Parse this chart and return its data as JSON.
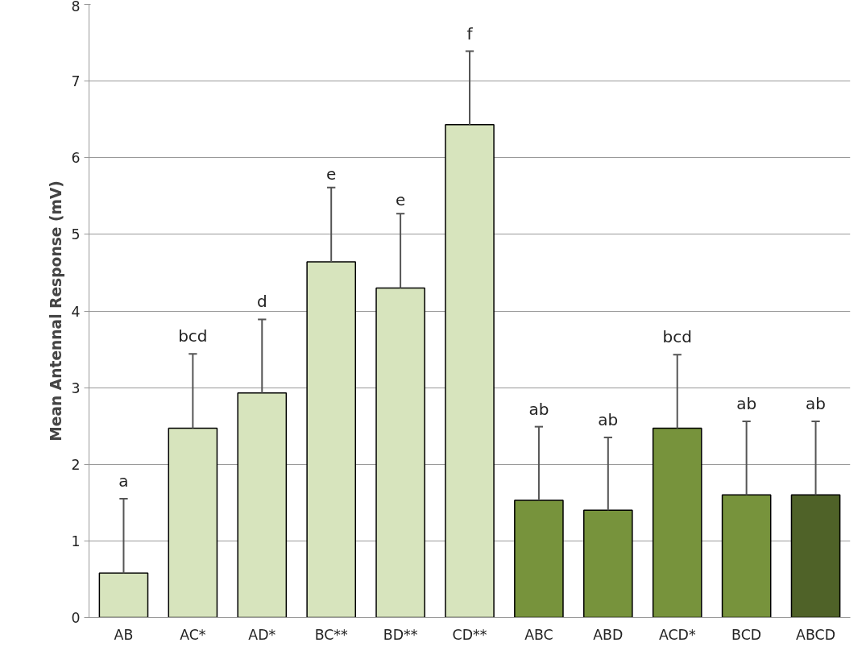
{
  "chart_data": {
    "type": "bar",
    "ylabel": "Mean Antennal Response (mV)",
    "categories": [
      "AB",
      "AC*",
      "AD*",
      "BC**",
      "BD**",
      "CD**",
      "ABC",
      "ABD",
      "ACD*",
      "BCD",
      "ABCD"
    ],
    "values": [
      0.58,
      2.47,
      2.93,
      4.64,
      4.3,
      6.43,
      1.53,
      1.4,
      2.47,
      1.6,
      1.6
    ],
    "errors": [
      [
        0.58,
        1.55
      ],
      [
        2.47,
        3.44
      ],
      [
        2.93,
        3.89
      ],
      [
        4.64,
        5.61
      ],
      [
        4.3,
        5.27
      ],
      [
        6.43,
        7.39
      ],
      [
        1.53,
        2.49
      ],
      [
        1.4,
        2.35
      ],
      [
        2.47,
        3.43
      ],
      [
        1.6,
        2.56
      ],
      [
        1.6,
        2.56
      ]
    ],
    "colors": [
      "#d7e4bd",
      "#d7e4bd",
      "#d7e4bd",
      "#d7e4bd",
      "#d7e4bd",
      "#d7e4bd",
      "#77933c",
      "#77933c",
      "#77933c",
      "#77933c",
      "#4f6228"
    ],
    "ylim": [
      0,
      8
    ],
    "yticks": [
      0,
      1,
      2,
      3,
      4,
      5,
      6,
      7,
      8
    ],
    "grid": "y",
    "annotations": [
      "a",
      "bcd",
      "d",
      "e",
      "e",
      "f",
      "ab",
      "ab",
      "bcd",
      "ab",
      "ab"
    ]
  }
}
